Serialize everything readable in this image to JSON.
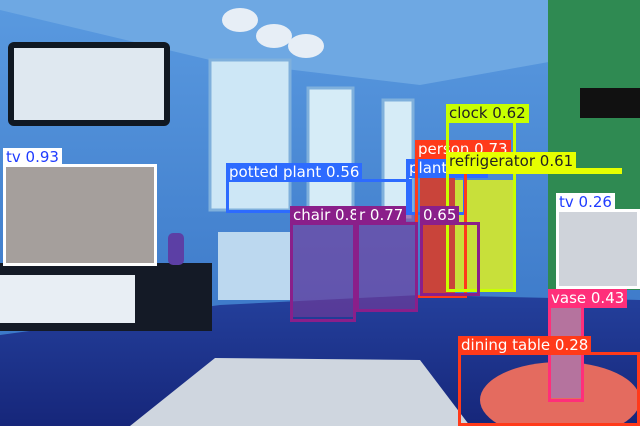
{
  "image": {
    "scene": "living room interior with blue color cast",
    "colors": {
      "wall": "#3f83d0",
      "ceiling": "#6aa4e0",
      "floor": "#1b2f8a",
      "window": "#d3eaf5",
      "tv_screen": "#a59f9c",
      "green_wall": "#2f8a52"
    }
  },
  "detections": [
    {
      "label": "tv 0.93",
      "color": "#ffffff",
      "text_color": "#1f3cff"
    },
    {
      "label": "potted plant 0.56",
      "color": "#2d6bff",
      "text_color": "#ffffff"
    },
    {
      "label": "chair 0.87",
      "color": "#8a1f8a",
      "text_color": "#ffffff"
    },
    {
      "label": "r 0.77",
      "color": "#8a1f8a",
      "text_color": "#ffffff"
    },
    {
      "label": "0.65",
      "color": "#8a1f8a",
      "text_color": "#ffffff"
    },
    {
      "label": "plant 0.55",
      "color": "#2d6bff",
      "text_color": "#ffffff"
    },
    {
      "label": "person 0.73",
      "color": "#ff3a1a",
      "text_color": "#ffffff"
    },
    {
      "label": "clock 0.62",
      "color": "#c8ff00",
      "text_color": "#222222"
    },
    {
      "label": "refrigerator 0.61",
      "color": "#e6ff00",
      "text_color": "#222222"
    },
    {
      "label": "tv 0.26",
      "color": "#ffffff",
      "text_color": "#1f3cff"
    },
    {
      "label": "vase 0.43",
      "color": "#ff2f7a",
      "text_color": "#ffffff"
    },
    {
      "label": "dining table 0.28",
      "color": "#ff3a1a",
      "text_color": "#ffffff"
    }
  ]
}
